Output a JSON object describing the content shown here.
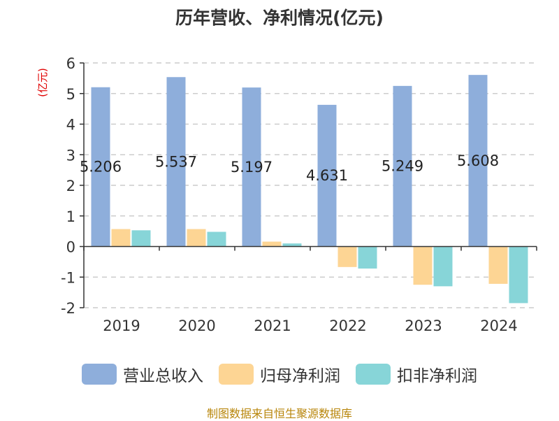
{
  "chart_data": {
    "type": "bar",
    "title": "历年营收、净利情况(亿元)",
    "ylabel": "(亿元)",
    "xlabel": "",
    "categories": [
      "2019",
      "2020",
      "2021",
      "2022",
      "2023",
      "2024"
    ],
    "ylim": [
      -2,
      6
    ],
    "yticks": [
      6,
      5,
      4,
      3,
      2,
      1,
      0,
      -1,
      -2
    ],
    "grid": true,
    "legend_position": "bottom",
    "series": [
      {
        "name": "营业总收入",
        "color": "#8eaedb",
        "values": [
          5.206,
          5.537,
          5.197,
          4.631,
          5.249,
          5.608
        ],
        "data_labels": [
          "5.206",
          "5.537",
          "5.197",
          "4.631",
          "5.249",
          "5.608"
        ]
      },
      {
        "name": "归母净利润",
        "color": "#fdd594",
        "values": [
          0.57,
          0.57,
          0.16,
          -0.67,
          -1.25,
          -1.22
        ]
      },
      {
        "name": "扣非净利润",
        "color": "#87d5d8",
        "values": [
          0.53,
          0.48,
          0.1,
          -0.72,
          -1.3,
          -1.85
        ]
      }
    ]
  },
  "source": "制图数据来自恒生聚源数据库",
  "colors": {
    "ylabel": "#e00000",
    "source": "#b8860b",
    "axis": "#333333",
    "grid": "#cccccc"
  }
}
